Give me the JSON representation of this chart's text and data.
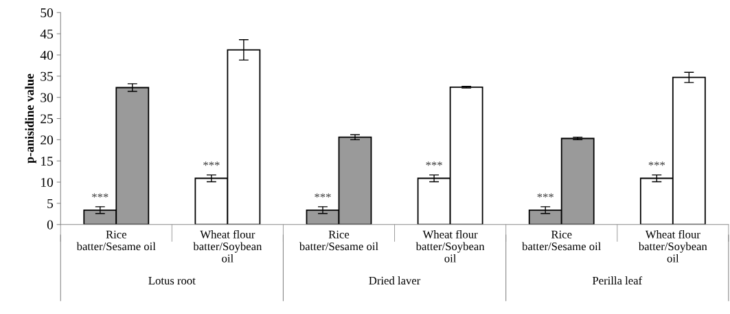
{
  "chart_data": {
    "type": "bar",
    "ylabel": "p-anisidine value",
    "categories": [
      "Rice batter/Sesame oil",
      "Wheat flour batter/Soybean oil",
      "Rice batter/Sesame oil",
      "Wheat flour batter/Soybean oil",
      "Rice batter/Sesame oil",
      "Wheat flour batter/Soybean oil"
    ],
    "series": [
      {
        "colors": [
          "#9a9a9a",
          "#ffffff",
          "#9a9a9a",
          "#ffffff",
          "#9a9a9a",
          "#ffffff"
        ],
        "values": [
          3.4,
          10.9,
          3.4,
          10.9,
          3.4,
          10.9
        ],
        "errors": [
          0.8,
          0.8,
          0.8,
          0.8,
          0.8,
          0.8
        ]
      },
      {
        "colors": [
          "#9a9a9a",
          "#ffffff",
          "#9a9a9a",
          "#ffffff",
          "#9a9a9a",
          "#ffffff"
        ],
        "values": [
          32.3,
          41.2,
          20.6,
          32.4,
          20.3,
          34.7
        ],
        "errors": [
          0.9,
          2.4,
          0.6,
          0.2,
          0.3,
          1.2
        ]
      }
    ],
    "annotations": [
      "***",
      "***",
      "***",
      "***",
      "***",
      "***",
      "Lotus root",
      "Dried laver",
      "Perilla leaf"
    ],
    "ylim": [
      0,
      50
    ],
    "yticks": [
      0,
      5,
      10,
      15,
      20,
      25,
      30,
      35,
      40,
      45,
      50
    ],
    "grid": false
  }
}
